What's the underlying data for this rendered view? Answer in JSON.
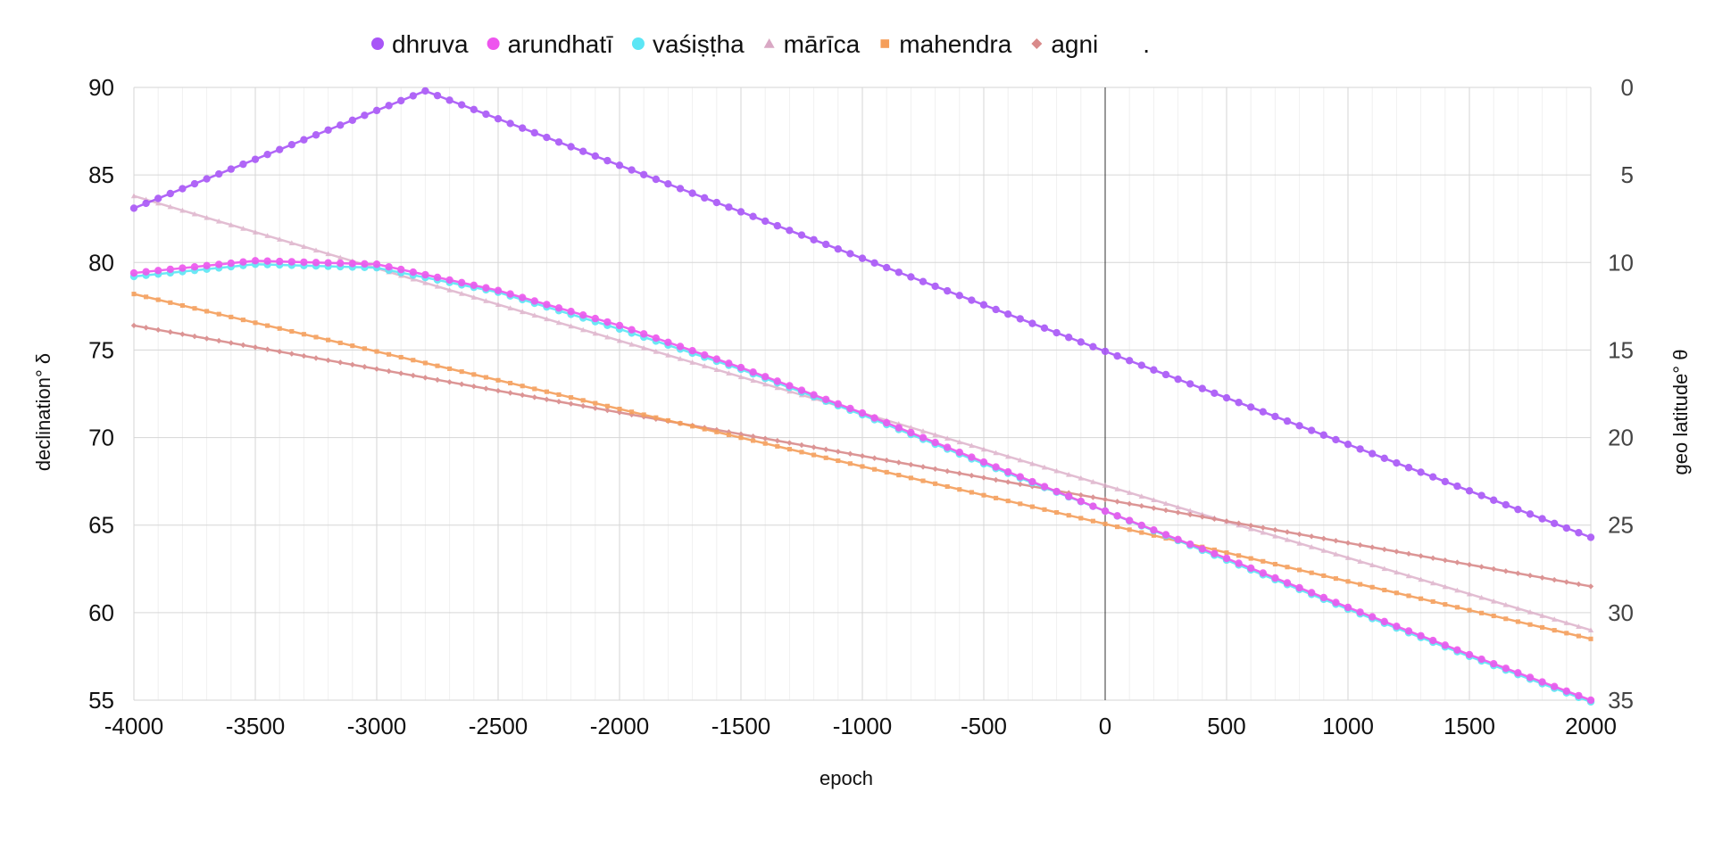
{
  "chart_data": {
    "type": "line",
    "xlabel": "epoch",
    "ylabel": "declination° δ",
    "y2label": "geo latitude°  θ",
    "xlim": [
      -4000,
      2000
    ],
    "ylim": [
      55,
      90
    ],
    "y2lim": [
      0,
      35
    ],
    "y2_inverted": true,
    "x_ticks": [
      "-4000",
      "-3500",
      "-3000",
      "-2500",
      "-2000",
      "-1500",
      "-1000",
      "-500",
      "0",
      "500",
      "1000",
      "1500",
      "2000"
    ],
    "y_ticks": [
      "55",
      "60",
      "65",
      "70",
      "75",
      "80",
      "85",
      "90"
    ],
    "y2_ticks": [
      "0",
      "5",
      "10",
      "15",
      "20",
      "25",
      "30",
      "35"
    ],
    "grid": true,
    "reference_line_x": 0,
    "legend_position": "top",
    "legend_extra": ".",
    "series": [
      {
        "name": "dhruva",
        "color": "#a855f7",
        "marker": "circle",
        "x": [
          -4000,
          -2800,
          2000
        ],
        "y": [
          83.1,
          89.8,
          64.3
        ]
      },
      {
        "name": "arundhatī",
        "color": "#ee55ee",
        "marker": "circle",
        "x": [
          -4000,
          -3500,
          -3000,
          -2500,
          -2000,
          -1500,
          -1000,
          -500,
          0,
          500,
          1000,
          1500,
          2000
        ],
        "y": [
          79.4,
          80.1,
          79.9,
          78.4,
          76.4,
          74.0,
          71.4,
          68.6,
          65.8,
          63.1,
          60.3,
          57.6,
          55.0
        ]
      },
      {
        "name": "vaśiṣṭha",
        "color": "#5ce6f5",
        "marker": "circle",
        "x": [
          -4000,
          -3500,
          -3000,
          -2500,
          -2000,
          -1500,
          -1000,
          -500,
          0,
          500,
          1000,
          1500,
          2000
        ],
        "y": [
          79.2,
          79.9,
          79.7,
          78.3,
          76.2,
          73.9,
          71.3,
          68.5,
          65.8,
          63.0,
          60.2,
          57.5,
          54.9
        ]
      },
      {
        "name": "mārīca",
        "color": "#d9a8c4",
        "marker": "triangle",
        "x": [
          -4000,
          2000
        ],
        "y": [
          83.8,
          59.0
        ]
      },
      {
        "name": "mahendra",
        "color": "#f59e5a",
        "marker": "square",
        "x": [
          -4000,
          2000
        ],
        "y": [
          78.2,
          58.5
        ]
      },
      {
        "name": "agni",
        "color": "#d98a8a",
        "marker": "diamond",
        "x": [
          -4000,
          2000
        ],
        "y": [
          76.4,
          61.5
        ]
      }
    ]
  }
}
